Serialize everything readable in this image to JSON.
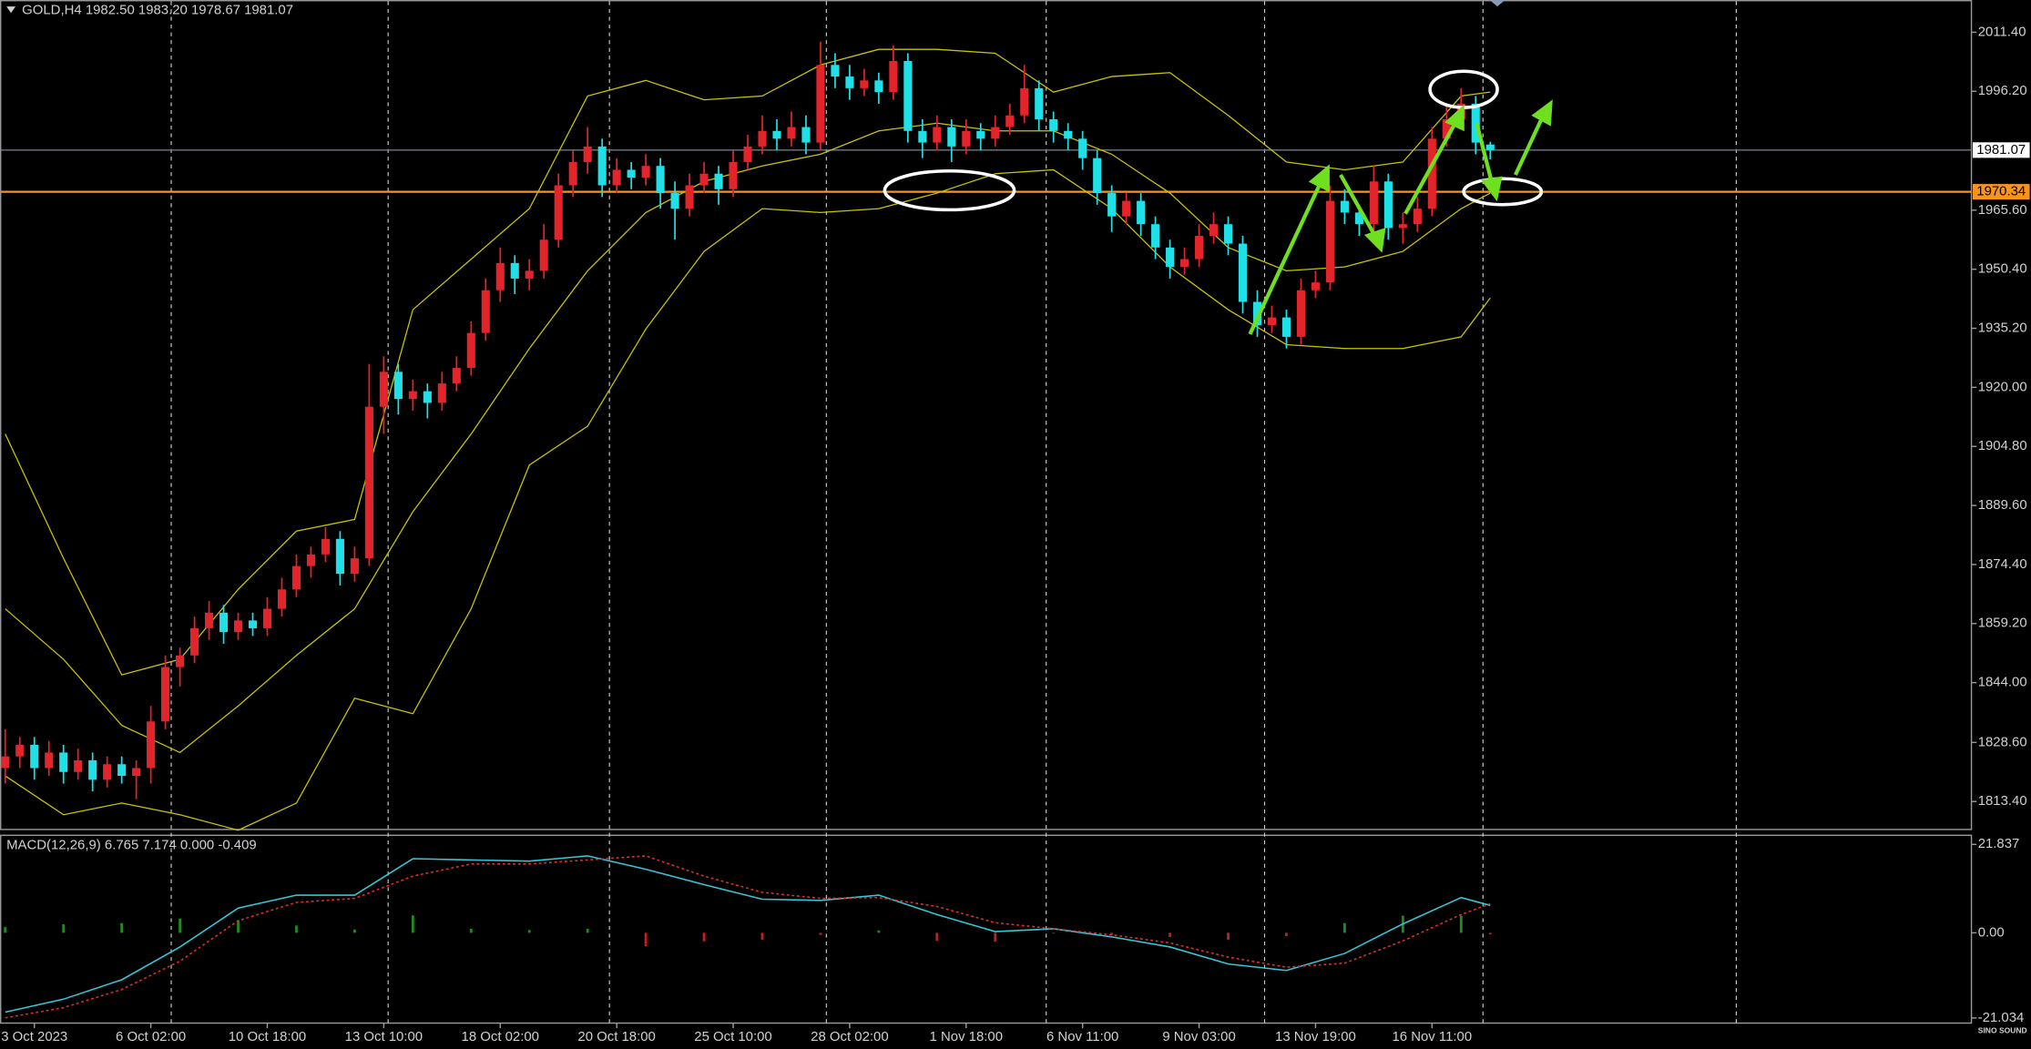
{
  "chart_data": [
    {
      "type": "candlestick",
      "title": "GOLD,H4  1982.50 1983.20 1978.67 1981.07",
      "up_color": "#e3242b",
      "down_color": "#1fe0e6",
      "xlim": [
        -0.36,
        135.05
      ],
      "xgrid": [
        11.4,
        26.3,
        41.5,
        56.4,
        71.5,
        86.5,
        101.5,
        118.9
      ],
      "ylim": [
        1806.03,
        2019.7
      ],
      "yticks": [
        {
          "value": 2011.4,
          "label": "2011.40"
        },
        {
          "value": 1996.2,
          "label": "1996.20"
        },
        {
          "value": 1965.6,
          "label": "1965.60"
        },
        {
          "value": 1950.4,
          "label": "1950.40"
        },
        {
          "value": 1935.2,
          "label": "1935.20"
        },
        {
          "value": 1920,
          "label": "1920.00"
        },
        {
          "value": 1904.8,
          "label": "1904.80"
        },
        {
          "value": 1889.6,
          "label": "1889.60"
        },
        {
          "value": 1874.4,
          "label": "1874.40"
        },
        {
          "value": 1859.2,
          "label": "1859.20"
        },
        {
          "value": 1844,
          "label": "1844.00"
        },
        {
          "value": 1828.6,
          "label": "1828.60"
        },
        {
          "value": 1813.4,
          "label": "1813.40"
        }
      ],
      "ohlc": [
        [
          1822,
          1832,
          1818,
          1825
        ],
        [
          1825,
          1830,
          1822,
          1828
        ],
        [
          1828,
          1830,
          1819,
          1822
        ],
        [
          1822,
          1829,
          1820,
          1826
        ],
        [
          1826,
          1828,
          1818,
          1821
        ],
        [
          1821,
          1827,
          1819,
          1824
        ],
        [
          1824,
          1826,
          1816,
          1819
        ],
        [
          1819,
          1825,
          1817,
          1823
        ],
        [
          1823,
          1825,
          1818,
          1820
        ],
        [
          1820,
          1824,
          1814,
          1822
        ],
        [
          1822,
          1838,
          1818,
          1834
        ],
        [
          1834,
          1851,
          1832,
          1848
        ],
        [
          1848,
          1853,
          1843,
          1851
        ],
        [
          1851,
          1861,
          1849,
          1858
        ],
        [
          1858,
          1865,
          1855,
          1862
        ],
        [
          1862,
          1864,
          1854,
          1857
        ],
        [
          1857,
          1862,
          1855,
          1860
        ],
        [
          1860,
          1862,
          1856,
          1858
        ],
        [
          1858,
          1866,
          1856,
          1863
        ],
        [
          1863,
          1871,
          1861,
          1868
        ],
        [
          1868,
          1877,
          1866,
          1874
        ],
        [
          1874,
          1879,
          1871,
          1877
        ],
        [
          1877,
          1884,
          1875,
          1881
        ],
        [
          1881,
          1883,
          1869,
          1872
        ],
        [
          1872,
          1879,
          1870,
          1876
        ],
        [
          1876,
          1926,
          1874,
          1915
        ],
        [
          1915,
          1928,
          1908,
          1924
        ],
        [
          1924,
          1926,
          1913,
          1917
        ],
        [
          1917,
          1922,
          1914,
          1919
        ],
        [
          1919,
          1921,
          1912,
          1916
        ],
        [
          1916,
          1924,
          1914,
          1921
        ],
        [
          1921,
          1928,
          1919,
          1925
        ],
        [
          1925,
          1937,
          1923,
          1934
        ],
        [
          1934,
          1948,
          1932,
          1945
        ],
        [
          1945,
          1956,
          1942,
          1952
        ],
        [
          1952,
          1954,
          1944,
          1948
        ],
        [
          1948,
          1953,
          1945,
          1950
        ],
        [
          1950,
          1962,
          1948,
          1958
        ],
        [
          1958,
          1975,
          1956,
          1972
        ],
        [
          1972,
          1981,
          1969,
          1978
        ],
        [
          1978,
          1987,
          1975,
          1982
        ],
        [
          1982,
          1984,
          1969,
          1972
        ],
        [
          1972,
          1979,
          1970,
          1976
        ],
        [
          1976,
          1978,
          1971,
          1974
        ],
        [
          1974,
          1980,
          1972,
          1977
        ],
        [
          1977,
          1979,
          1966,
          1970
        ],
        [
          1970,
          1973,
          1958,
          1966
        ],
        [
          1966,
          1975,
          1964,
          1972
        ],
        [
          1972,
          1978,
          1970,
          1975
        ],
        [
          1975,
          1977,
          1967,
          1971
        ],
        [
          1971,
          1981,
          1969,
          1978
        ],
        [
          1978,
          1985,
          1976,
          1982
        ],
        [
          1982,
          1990,
          1980,
          1986
        ],
        [
          1986,
          1989,
          1981,
          1984
        ],
        [
          1984,
          1991,
          1982,
          1987
        ],
        [
          1987,
          1990,
          1980,
          1983
        ],
        [
          1983,
          2009,
          1981,
          2003
        ],
        [
          2003,
          2006,
          1997,
          2000
        ],
        [
          2000,
          2003,
          1994,
          1997
        ],
        [
          1997,
          2002,
          1995,
          1999
        ],
        [
          1999,
          2001,
          1993,
          1996
        ],
        [
          1996,
          2008,
          1994,
          2004
        ],
        [
          2004,
          2006,
          1983,
          1986
        ],
        [
          1986,
          1989,
          1979,
          1983
        ],
        [
          1983,
          1990,
          1981,
          1987
        ],
        [
          1987,
          1989,
          1978,
          1982
        ],
        [
          1982,
          1989,
          1980,
          1986
        ],
        [
          1986,
          1988,
          1981,
          1984
        ],
        [
          1984,
          1990,
          1982,
          1987
        ],
        [
          1987,
          1993,
          1985,
          1990
        ],
        [
          1990,
          2003,
          1988,
          1997
        ],
        [
          1997,
          1999,
          1986,
          1989
        ],
        [
          1989,
          1991,
          1983,
          1986
        ],
        [
          1986,
          1988,
          1981,
          1984
        ],
        [
          1984,
          1986,
          1976,
          1979
        ],
        [
          1979,
          1981,
          1967,
          1970
        ],
        [
          1970,
          1972,
          1960,
          1964
        ],
        [
          1964,
          1970,
          1962,
          1968
        ],
        [
          1968,
          1970,
          1959,
          1962
        ],
        [
          1962,
          1964,
          1953,
          1956
        ],
        [
          1956,
          1958,
          1948,
          1951
        ],
        [
          1951,
          1956,
          1949,
          1953
        ],
        [
          1953,
          1962,
          1951,
          1959
        ],
        [
          1959,
          1965,
          1957,
          1962
        ],
        [
          1962,
          1964,
          1954,
          1957
        ],
        [
          1957,
          1959,
          1939,
          1942
        ],
        [
          1942,
          1945,
          1933,
          1936
        ],
        [
          1936,
          1941,
          1934,
          1938
        ],
        [
          1938,
          1940,
          1930,
          1933
        ],
        [
          1933,
          1948,
          1931,
          1945
        ],
        [
          1945,
          1950,
          1943,
          1947
        ],
        [
          1947,
          1972,
          1945,
          1968
        ],
        [
          1968,
          1971,
          1962,
          1965
        ],
        [
          1965,
          1967,
          1959,
          1962
        ],
        [
          1962,
          1977,
          1960,
          1973
        ],
        [
          1973,
          1975,
          1958,
          1961
        ],
        [
          1961,
          1965,
          1957,
          1962
        ],
        [
          1962,
          1969,
          1960,
          1966
        ],
        [
          1966,
          1987,
          1964,
          1984
        ],
        [
          1984,
          1993,
          1982,
          1989
        ],
        [
          1989,
          1997,
          1987,
          1993
        ],
        [
          1993,
          1995,
          1980,
          1983
        ],
        [
          1982.5,
          1983.2,
          1978.67,
          1981.07
        ]
      ],
      "overlay_x": [
        0,
        4,
        8,
        12,
        16,
        20,
        24,
        28,
        32,
        36,
        40,
        44,
        48,
        52,
        56,
        60,
        64,
        68,
        72,
        76,
        80,
        84,
        88,
        92,
        96,
        100,
        102
      ],
      "overlays": [
        {
          "color": "#c9c300",
          "values": [
            1908,
            1876,
            1846,
            1850,
            1868,
            1883,
            1886,
            1940,
            1953,
            1966,
            1995,
            1999,
            1994,
            1995,
            2003,
            2007,
            2007,
            2006,
            1996,
            2000,
            2001,
            1990,
            1978,
            1976,
            1978,
            1995,
            1996
          ]
        },
        {
          "color": "#c9c300",
          "values": [
            1863,
            1850,
            1833,
            1826,
            1838,
            1851,
            1863,
            1888,
            1908,
            1930,
            1950,
            1965,
            1973,
            1977,
            1980,
            1986,
            1988,
            1986,
            1986,
            1980,
            1970,
            1956,
            1950,
            1951,
            1955,
            1966,
            1970
          ]
        },
        {
          "color": "#c9c300",
          "values": [
            1820,
            1810,
            1813,
            1810,
            1806,
            1813,
            1840,
            1836,
            1863,
            1900,
            1910,
            1935,
            1955,
            1966,
            1965,
            1966,
            1970,
            1975,
            1976,
            1966,
            1951,
            1940,
            1931,
            1930,
            1930,
            1933,
            1943
          ]
        }
      ],
      "price_lines": [
        {
          "value": 1981.07,
          "color": "#6f7a86",
          "box": "#ffffff"
        },
        {
          "value": 1970.34,
          "color": "#f7931e",
          "box": "#f7931e"
        }
      ],
      "watermark": "SINO SOUND"
    },
    {
      "type": "macd",
      "title": "MACD(12,26,9) 6.765 7.174 0.000 -0.409",
      "xlim": [
        -0.36,
        135.05
      ],
      "xticks": [
        {
          "value": 2,
          "label": "3 Oct 2023"
        },
        {
          "value": 10,
          "label": "6 Oct 02:00"
        },
        {
          "value": 18,
          "label": "10 Oct 18:00"
        },
        {
          "value": 26,
          "label": "13 Oct 10:00"
        },
        {
          "value": 34,
          "label": "18 Oct 02:00"
        },
        {
          "value": 42,
          "label": "20 Oct 18:00"
        },
        {
          "value": 50,
          "label": "25 Oct 10:00"
        },
        {
          "value": 58,
          "label": "28 Oct 02:00"
        },
        {
          "value": 66,
          "label": "1 Nov 18:00"
        },
        {
          "value": 74,
          "label": "6 Nov 11:00"
        },
        {
          "value": 82,
          "label": "9 Nov 03:00"
        },
        {
          "value": 90,
          "label": "13 Nov 19:00"
        },
        {
          "value": 98,
          "label": "16 Nov 11:00"
        }
      ],
      "ylim": [
        -22.3,
        24.08
      ],
      "yticks": [
        21.837,
        {
          "value": 0,
          "label": "0.00"
        },
        -21.034
      ],
      "x": [
        0,
        4,
        8,
        12,
        16,
        20,
        24,
        28,
        32,
        36,
        40,
        44,
        48,
        52,
        56,
        60,
        64,
        68,
        72,
        76,
        80,
        84,
        88,
        92,
        96,
        100,
        102
      ],
      "lines": [
        {
          "color": "#35c7d8",
          "dashed": false,
          "values": [
            -19.6,
            -16.4,
            -11.6,
            -3.5,
            6.1,
            9.3,
            9.3,
            18.3,
            18.0,
            17.7,
            19.0,
            15.7,
            11.9,
            8.3,
            8.0,
            9.3,
            4.5,
            0.3,
            1.0,
            -1.0,
            -3.5,
            -7.7,
            -9.3,
            -5.1,
            2.2,
            8.7,
            6.765
          ]
        },
        {
          "color": "#e0302e",
          "dashed": true,
          "values": [
            -21,
            -18.5,
            -14,
            -7,
            3,
            7.5,
            8.5,
            14,
            17,
            17,
            18,
            19,
            14,
            10,
            8.5,
            8.7,
            6.5,
            2.5,
            1.0,
            -0.5,
            -2.5,
            -6,
            -8.5,
            -7.5,
            -2,
            4.5,
            7.174
          ]
        }
      ],
      "histogram": {
        "pos_color": "#1f8a22",
        "neg_color": "#c0201f",
        "values": [
          1.4,
          2.1,
          2.4,
          3.5,
          3.1,
          1.8,
          0.8,
          4.3,
          1.0,
          0.7,
          1.0,
          -3.3,
          -2.1,
          -1.7,
          -0.5,
          0.6,
          -2.0,
          -2.2,
          0,
          -0.5,
          -1.0,
          -1.7,
          -0.8,
          2.4,
          4.2,
          4.2,
          -0.409
        ]
      }
    }
  ]
}
